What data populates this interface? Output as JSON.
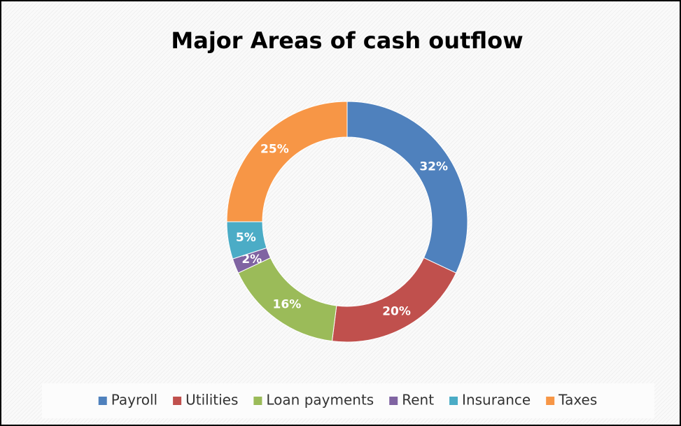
{
  "chart_data": {
    "type": "donut",
    "title": "Major Areas of cash outflow",
    "categories": [
      "Payroll",
      "Utilities",
      "Loan payments",
      "Rent",
      "Insurance",
      "Taxes"
    ],
    "values": [
      32,
      20,
      16,
      2,
      5,
      25
    ],
    "value_labels": [
      "32%",
      "20%",
      "16%",
      "2%",
      "5%",
      "25%"
    ],
    "colors": [
      "#4f81bd",
      "#c0504d",
      "#9bbb59",
      "#8064a2",
      "#4bacc6",
      "#f79646"
    ],
    "legend": "bottom"
  }
}
